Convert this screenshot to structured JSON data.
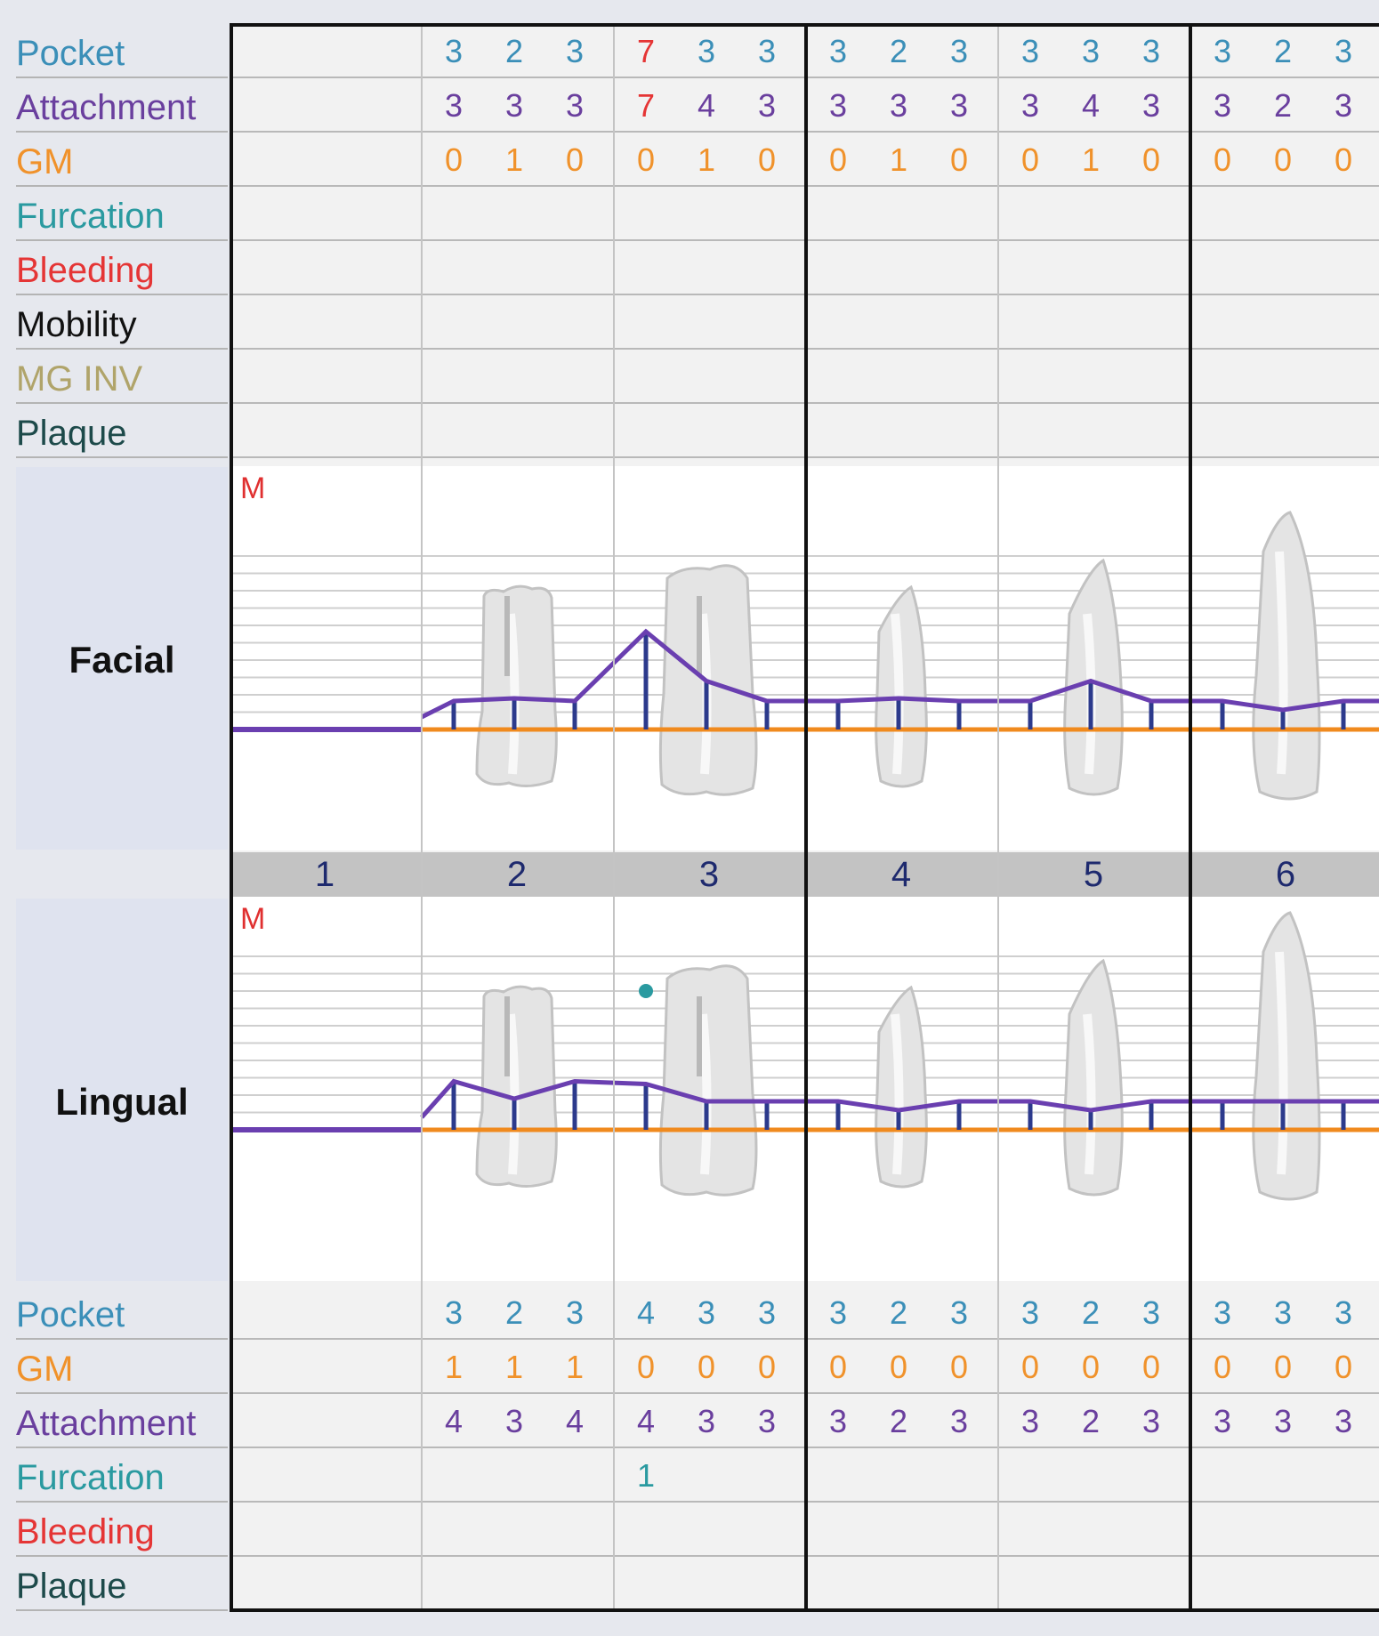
{
  "colors": {
    "pocket": "#3b8fb8",
    "attachment": "#6a3f9e",
    "gm": "#f0922b",
    "furcation": "#2a9aa0",
    "bleeding": "#e53535",
    "mobility": "#111111",
    "mg_inv": "#b0a46a",
    "plaque": "#1d4a4a",
    "high_value": "#e53535",
    "attachment_line": "#6a3fb0",
    "gm_line": "#f08a1e",
    "probe_tick": "#2c3a8c"
  },
  "marker": "M",
  "facial": {
    "section_label": "Facial",
    "rows": [
      {
        "label": "Pocket",
        "key": "pocket",
        "values": [
          "",
          "3",
          "2",
          "3",
          "7",
          "3",
          "3",
          "3",
          "2",
          "3",
          "3",
          "3",
          "3",
          "3",
          "2",
          "3"
        ]
      },
      {
        "label": "Attachment",
        "key": "attachment",
        "values": [
          "",
          "3",
          "3",
          "3",
          "7",
          "4",
          "3",
          "3",
          "3",
          "3",
          "3",
          "4",
          "3",
          "3",
          "2",
          "3"
        ]
      },
      {
        "label": "GM",
        "key": "gm",
        "values": [
          "",
          "0",
          "1",
          "0",
          "0",
          "1",
          "0",
          "0",
          "1",
          "0",
          "0",
          "1",
          "0",
          "0",
          "0",
          "0"
        ]
      },
      {
        "label": "Furcation",
        "key": "furcation",
        "values": []
      },
      {
        "label": "Bleeding",
        "key": "bleeding",
        "values": []
      },
      {
        "label": "Mobility",
        "key": "mobility",
        "values": []
      },
      {
        "label": "MG INV",
        "key": "mg_inv",
        "values": []
      },
      {
        "label": "Plaque",
        "key": "plaque",
        "values": []
      }
    ]
  },
  "tooth_numbers": [
    "1",
    "2",
    "3",
    "4",
    "5",
    "6"
  ],
  "lingual": {
    "section_label": "Lingual",
    "rows": [
      {
        "label": "Pocket",
        "key": "pocket",
        "values": [
          "",
          "3",
          "2",
          "3",
          "4",
          "3",
          "3",
          "3",
          "2",
          "3",
          "3",
          "2",
          "3",
          "3",
          "3",
          "3"
        ]
      },
      {
        "label": "GM",
        "key": "gm",
        "values": [
          "",
          "1",
          "1",
          "1",
          "0",
          "0",
          "0",
          "0",
          "0",
          "0",
          "0",
          "0",
          "0",
          "0",
          "0",
          "0"
        ]
      },
      {
        "label": "Attachment",
        "key": "attachment",
        "values": [
          "",
          "4",
          "3",
          "4",
          "4",
          "3",
          "3",
          "3",
          "2",
          "3",
          "3",
          "2",
          "3",
          "3",
          "3",
          "3"
        ]
      },
      {
        "label": "Furcation",
        "key": "furcation",
        "values": [
          "",
          "",
          "",
          "",
          "1",
          "",
          "",
          "",
          "",
          "",
          "",
          "",
          "",
          "",
          "",
          ""
        ]
      },
      {
        "label": "Bleeding",
        "key": "bleeding",
        "values": []
      },
      {
        "label": "Plaque",
        "key": "plaque",
        "values": []
      }
    ]
  }
}
